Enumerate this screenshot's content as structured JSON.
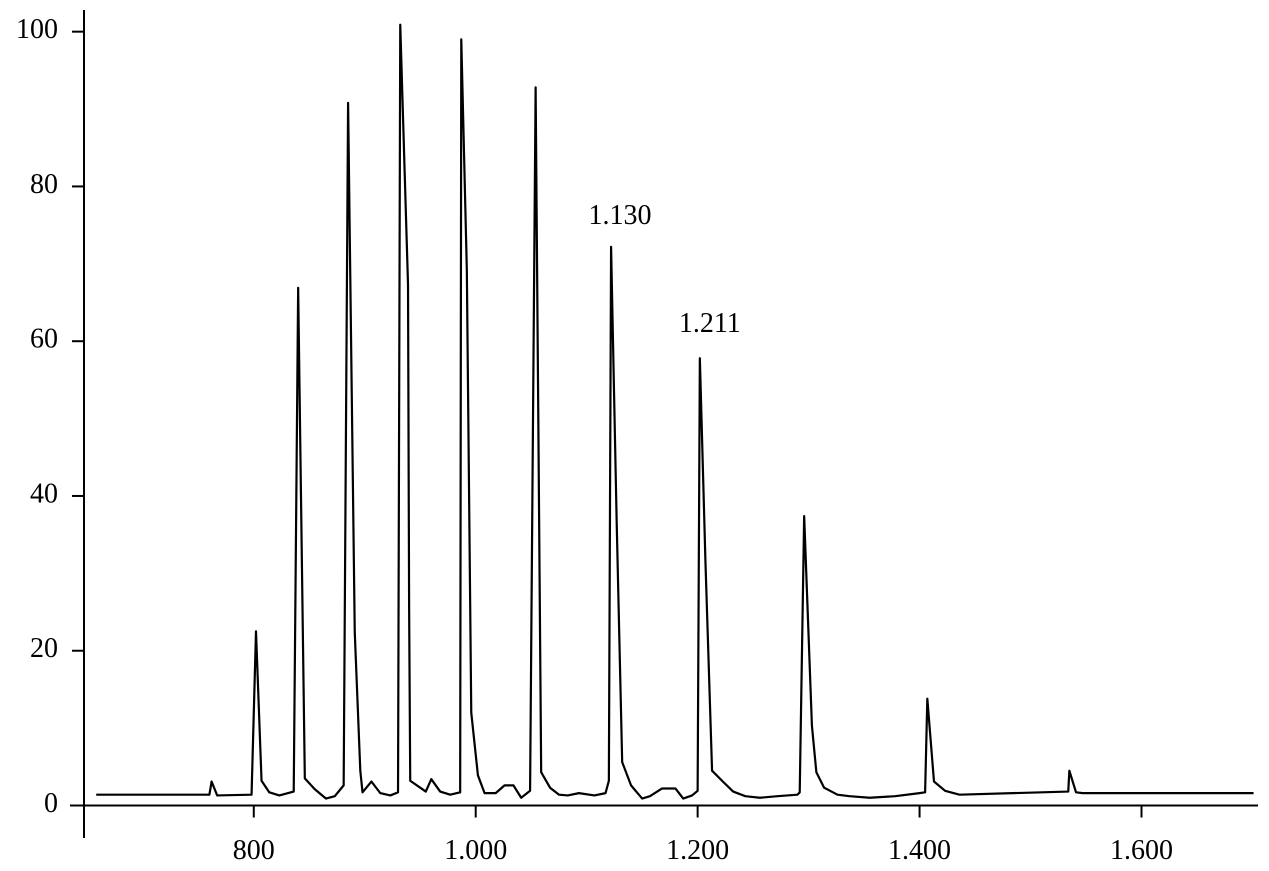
{
  "chart_data": {
    "type": "line",
    "x": [
      658,
      760,
      762,
      767,
      798,
      802,
      807,
      814,
      823,
      836,
      840,
      846,
      855,
      865,
      873,
      881,
      885,
      891,
      896,
      898,
      906,
      914,
      923,
      930,
      932,
      939,
      940,
      941,
      950,
      955,
      960,
      968,
      977,
      986,
      987,
      992,
      996,
      1002,
      1008,
      1018,
      1026,
      1034,
      1041,
      1049,
      1054,
      1059,
      1067,
      1075,
      1083,
      1093,
      1107,
      1117,
      1120,
      1122,
      1127,
      1132,
      1140,
      1150,
      1157,
      1168,
      1180,
      1187,
      1195,
      1200,
      1202,
      1207,
      1213,
      1222,
      1232,
      1243,
      1256,
      1272,
      1290,
      1292,
      1296,
      1303,
      1307,
      1314,
      1326,
      1337,
      1355,
      1378,
      1400,
      1405,
      1407,
      1413,
      1423,
      1436,
      1534,
      1535,
      1541,
      1547,
      1701
    ],
    "series": [
      {
        "color": "#000000",
        "values": [
          1.4,
          1.4,
          3.1,
          1.3,
          1.4,
          22.5,
          3.2,
          1.7,
          1.3,
          1.8,
          66.9,
          3.5,
          2.1,
          0.9,
          1.2,
          2.6,
          90.8,
          22.4,
          4.5,
          1.7,
          3.1,
          1.6,
          1.3,
          1.7,
          100.9,
          67.3,
          25.6,
          3.2,
          2.3,
          1.8,
          3.4,
          1.8,
          1.4,
          1.7,
          99.0,
          69.2,
          12.0,
          3.9,
          1.6,
          1.6,
          2.6,
          2.6,
          1.0,
          1.9,
          92.8,
          4.3,
          2.3,
          1.4,
          1.3,
          1.6,
          1.3,
          1.6,
          3.2,
          72.2,
          36.9,
          5.6,
          2.6,
          0.9,
          1.2,
          2.2,
          2.2,
          0.9,
          1.3,
          1.9,
          57.8,
          31.7,
          4.5,
          3.2,
          1.8,
          1.2,
          1.0,
          1.2,
          1.4,
          1.7,
          37.4,
          10.3,
          4.3,
          2.3,
          1.4,
          1.2,
          1.0,
          1.2,
          1.6,
          1.7,
          13.8,
          3.1,
          1.9,
          1.4,
          1.8,
          4.5,
          1.7,
          1.6,
          1.6
        ]
      }
    ],
    "xlim": [
      647,
      1705
    ],
    "ylim": [
      -4.2,
      102.8
    ],
    "xticks": [
      800,
      {
        "value": 1000,
        "label": "1.000"
      },
      {
        "value": 1200,
        "label": "1.200"
      },
      {
        "value": 1400,
        "label": "1.400"
      },
      {
        "value": 1600,
        "label": "1.600"
      }
    ],
    "yticks": [
      0,
      20,
      40,
      60,
      80,
      100
    ],
    "annotations": [
      {
        "text": "1.130",
        "x": 1130,
        "y": 76
      },
      {
        "text": "1.211",
        "x": 1211,
        "y": 62
      }
    ]
  }
}
